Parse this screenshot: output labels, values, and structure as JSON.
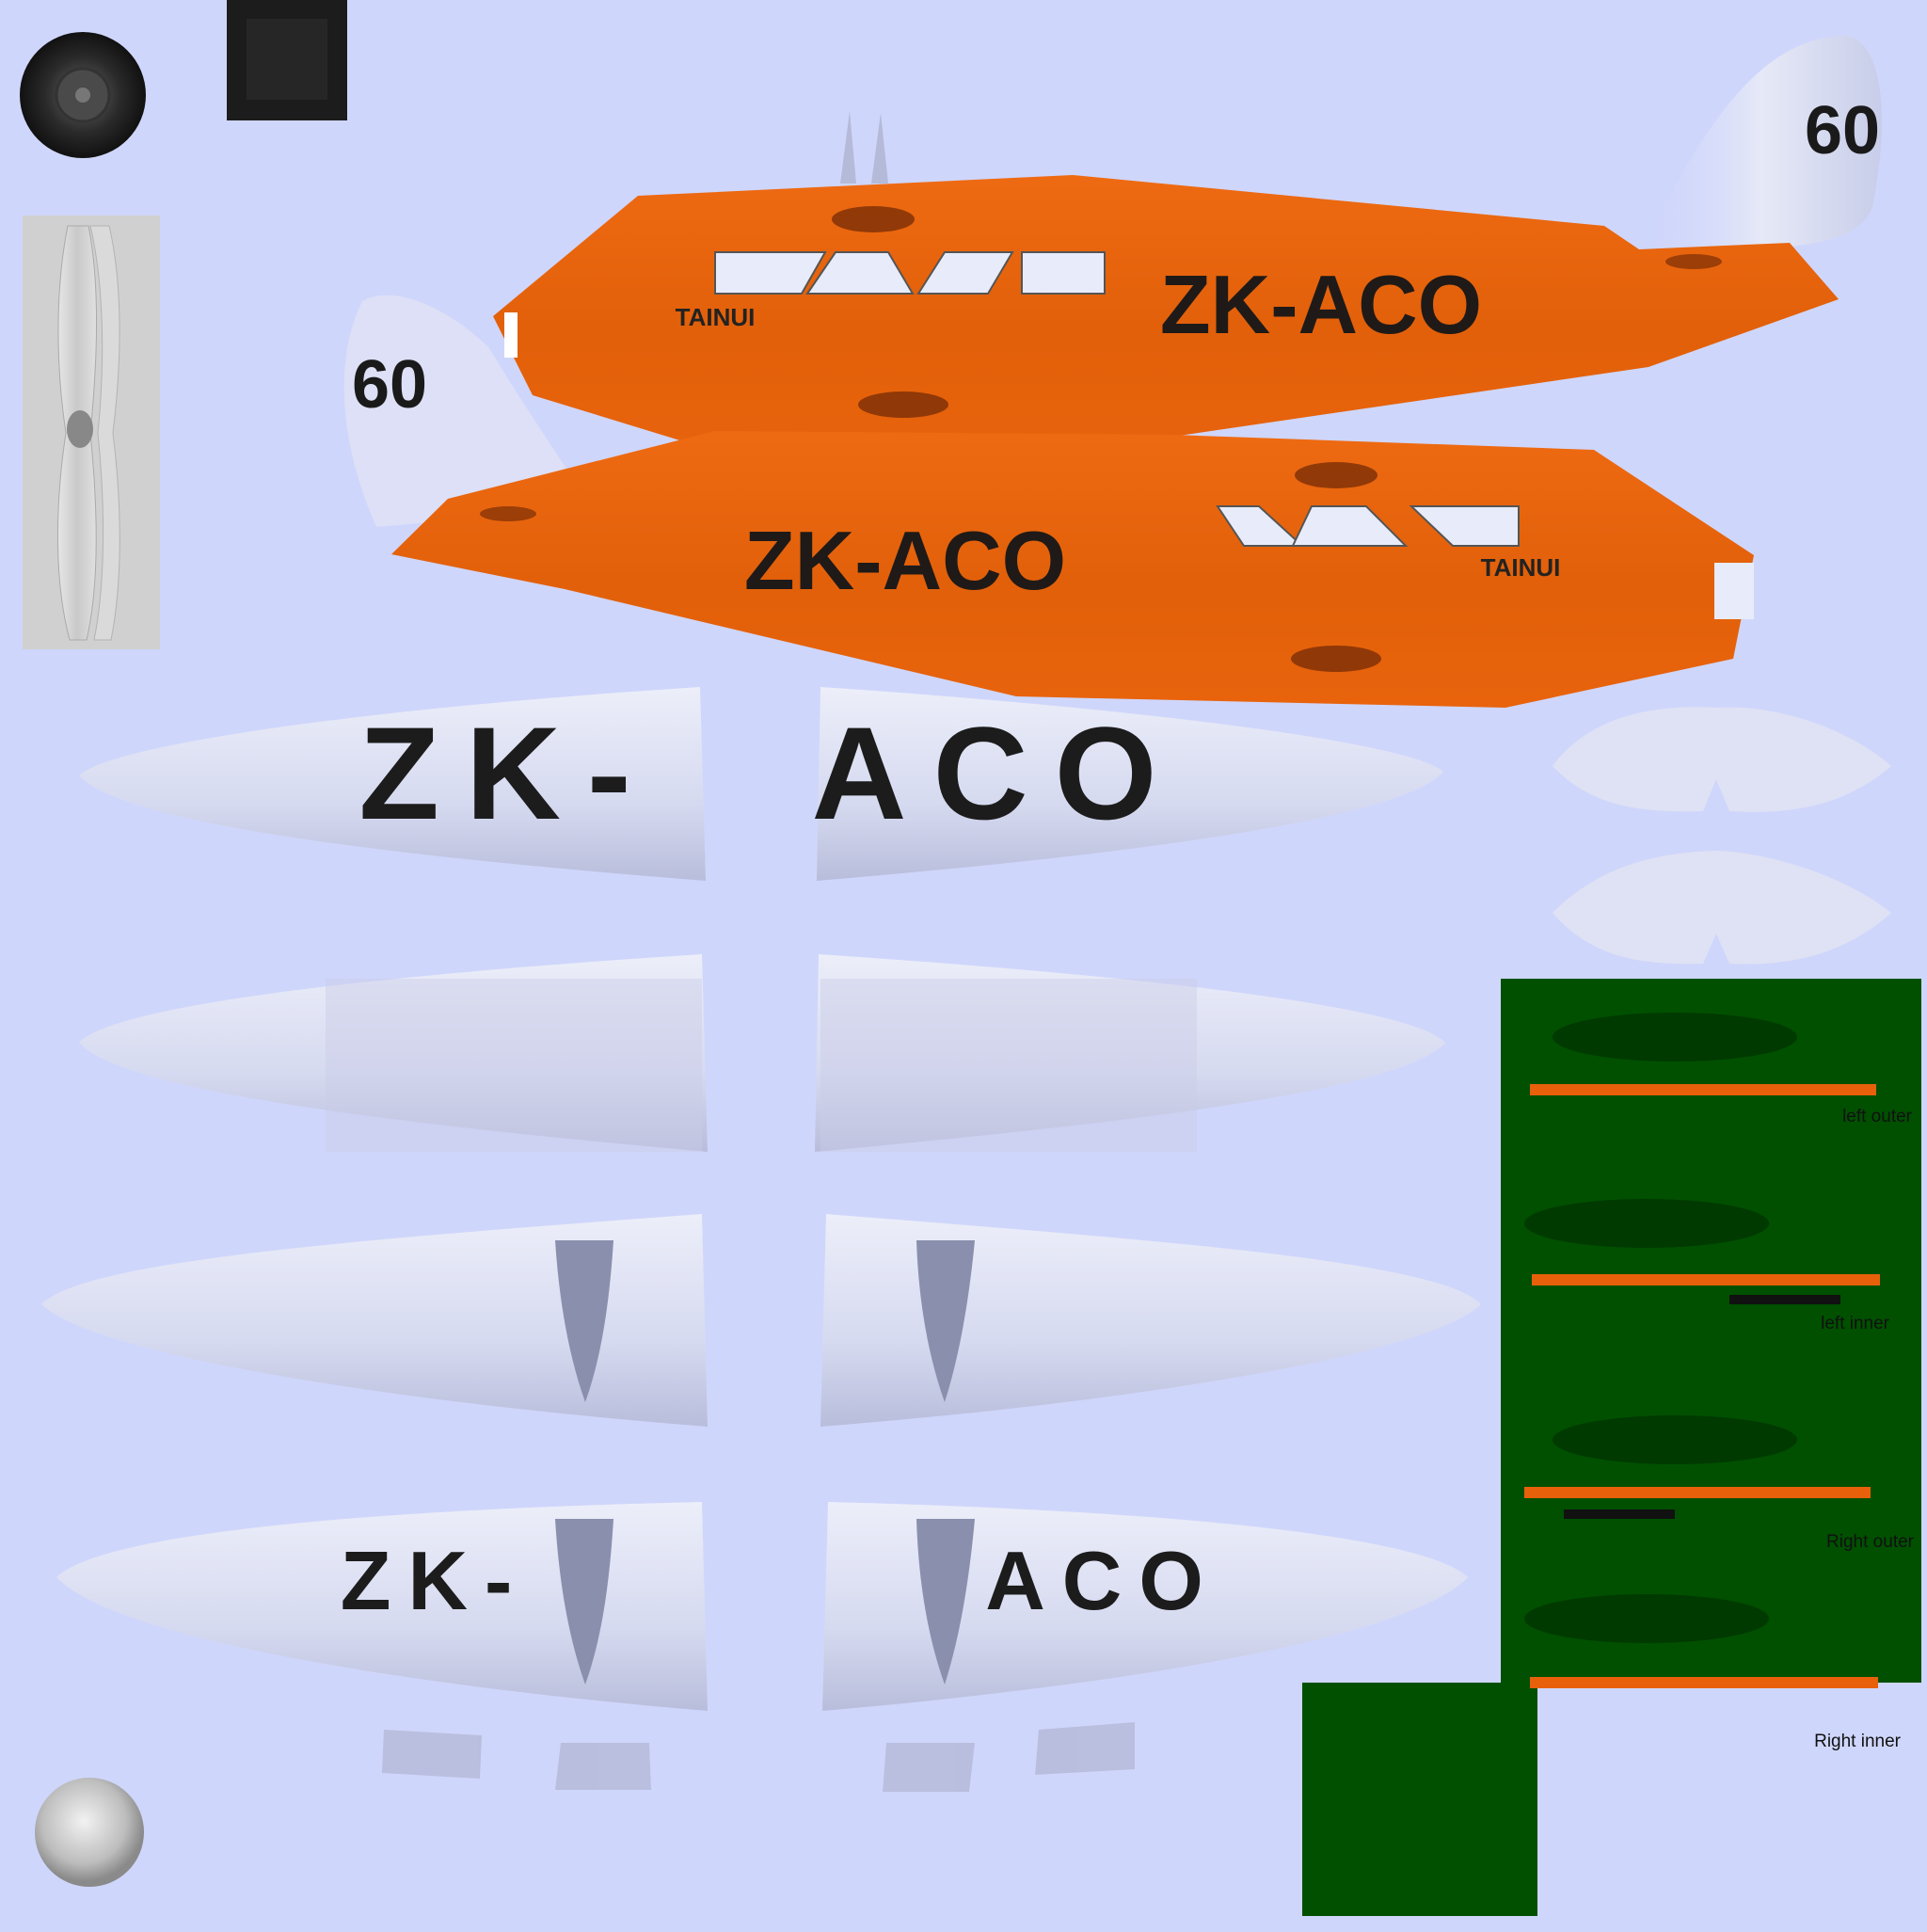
{
  "fuselage": {
    "registration": "ZK-ACO",
    "name": "TAINUI",
    "tail_number": "60",
    "color": "#e8600a"
  },
  "wings": {
    "upper_left_text": "ZK-",
    "upper_right_text": "ACO",
    "lower_left_text": "ZK-",
    "lower_right_text": "ACO",
    "color": "#d8dcf2"
  },
  "floats_panel": {
    "background": "#005000",
    "stripe_color": "#e8600a",
    "labels": [
      "left outer",
      "left inner",
      "Right outer",
      "Right inner"
    ]
  },
  "background": "#cfd6fb"
}
